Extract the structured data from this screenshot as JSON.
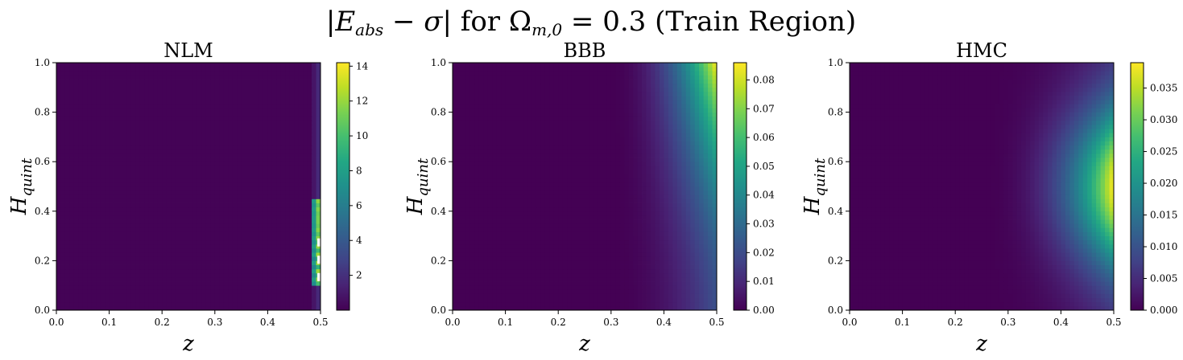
{
  "figure": {
    "title": "|E_abs − σ| for Ω_m,0 = 0.3 (Train Region)"
  },
  "chart_data": [
    {
      "type": "heatmap",
      "title": "NLM",
      "xlabel": "z",
      "ylabel": "H_quint",
      "xlim": [
        0.0,
        0.5
      ],
      "ylim": [
        0.0,
        1.0
      ],
      "x_ticks": [
        "0.0",
        "0.1",
        "0.2",
        "0.3",
        "0.4",
        "0.5"
      ],
      "y_ticks": [
        "0.0",
        "0.2",
        "0.4",
        "0.6",
        "0.8",
        "1.0"
      ],
      "colorbar": {
        "vmin": 0.0,
        "vmax": 14.2,
        "ticks": [
          "2",
          "4",
          "6",
          "8",
          "10",
          "12",
          "14"
        ]
      },
      "colormap": "viridis",
      "description_values": {
        "max_value": 14.2,
        "hotspot_z": 0.5,
        "hotspot_H_range": [
          0.1,
          0.45
        ]
      }
    },
    {
      "type": "heatmap",
      "title": "BBB",
      "xlabel": "z",
      "ylabel": "H_quint",
      "xlim": [
        0.0,
        0.5
      ],
      "ylim": [
        0.0,
        1.0
      ],
      "x_ticks": [
        "0.0",
        "0.1",
        "0.2",
        "0.3",
        "0.4",
        "0.5"
      ],
      "y_ticks": [
        "0.0",
        "0.2",
        "0.4",
        "0.6",
        "0.8",
        "1.0"
      ],
      "colorbar": {
        "vmin": 0.0,
        "vmax": 0.086,
        "ticks": [
          "0.00",
          "0.01",
          "0.02",
          "0.03",
          "0.04",
          "0.05",
          "0.06",
          "0.07",
          "0.08"
        ]
      },
      "colormap": "viridis",
      "description_values": {
        "max_value": 0.086,
        "hotspot_z": 0.5,
        "hotspot_H": 1.0
      }
    },
    {
      "type": "heatmap",
      "title": "HMC",
      "xlabel": "z",
      "ylabel": "H_quint",
      "xlim": [
        0.0,
        0.5
      ],
      "ylim": [
        0.0,
        1.0
      ],
      "x_ticks": [
        "0.0",
        "0.1",
        "0.2",
        "0.3",
        "0.4",
        "0.5"
      ],
      "y_ticks": [
        "0.0",
        "0.2",
        "0.4",
        "0.6",
        "0.8",
        "1.0"
      ],
      "colorbar": {
        "vmin": 0.0,
        "vmax": 0.039,
        "ticks": [
          "0.000",
          "0.005",
          "0.010",
          "0.015",
          "0.020",
          "0.025",
          "0.030",
          "0.035"
        ]
      },
      "colormap": "viridis",
      "description_values": {
        "max_value": 0.039,
        "hotspot_z": 0.5,
        "hotspot_H": 0.5
      }
    }
  ]
}
